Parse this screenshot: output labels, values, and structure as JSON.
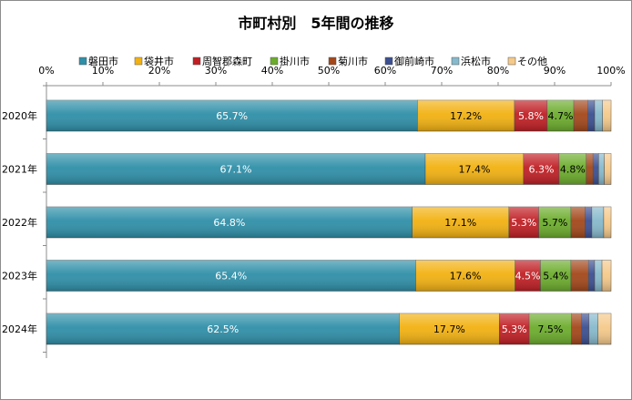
{
  "chart_data": {
    "type": "bar",
    "orientation": "horizontal",
    "stacked": true,
    "percent": true,
    "title": "市町村別　5年間の推移",
    "categories": [
      "2020年",
      "2021年",
      "2022年",
      "2023年",
      "2024年"
    ],
    "xlim": [
      0,
      100
    ],
    "x_tick_labels": [
      "0%",
      "10%",
      "20%",
      "30%",
      "40%",
      "50%",
      "60%",
      "70%",
      "80%",
      "90%",
      "100%"
    ],
    "x_axis_position": "top",
    "grid": false,
    "legend_position": "top",
    "series": [
      {
        "name": "磐田市",
        "color": "#2e8fa8",
        "values": [
          65.7,
          67.1,
          64.8,
          65.4,
          62.5
        ],
        "labels": [
          "65.7%",
          "67.1%",
          "64.8%",
          "65.4%",
          "62.5%"
        ]
      },
      {
        "name": "袋井市",
        "color": "#f2b111",
        "values": [
          17.2,
          17.4,
          17.1,
          17.6,
          17.7
        ],
        "labels": [
          "17.2%",
          "17.4%",
          "17.1%",
          "17.6%",
          "17.7%"
        ]
      },
      {
        "name": "周智郡森町",
        "color": "#c01f24",
        "values": [
          5.8,
          6.3,
          5.3,
          4.5,
          5.3
        ],
        "labels": [
          "5.8%",
          "6.3%",
          "5.3%",
          "4.5%",
          "5.3%"
        ]
      },
      {
        "name": "掛川市",
        "color": "#6cac2c",
        "values": [
          4.7,
          4.8,
          5.7,
          5.4,
          7.5
        ],
        "labels": [
          "4.7%",
          "4.8%",
          "5.7%",
          "5.4%",
          "7.5%"
        ]
      },
      {
        "name": "菊川市",
        "color": "#a3471a",
        "values": [
          2.5,
          1.2,
          2.5,
          3.1,
          1.8
        ],
        "labels": [
          "",
          "",
          "",
          "",
          ""
        ]
      },
      {
        "name": "御前崎市",
        "color": "#3b4f91",
        "values": [
          1.2,
          1.0,
          1.2,
          1.1,
          1.3
        ],
        "labels": [
          "",
          "",
          "",
          "",
          ""
        ]
      },
      {
        "name": "浜松市",
        "color": "#86b9cc",
        "values": [
          1.4,
          1.0,
          2.1,
          1.3,
          1.6
        ],
        "labels": [
          "",
          "",
          "",
          "",
          ""
        ]
      },
      {
        "name": "その他",
        "color": "#f5c98a",
        "values": [
          1.5,
          1.2,
          1.3,
          1.6,
          2.3
        ],
        "labels": [
          "",
          "",
          "",
          "",
          ""
        ]
      }
    ]
  }
}
